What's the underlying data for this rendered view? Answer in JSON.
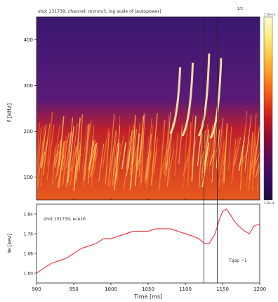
{
  "chart_data": [
    {
      "type": "heatmap",
      "title": "shot 131739, channel: mirnov3, log scale of |autopower|",
      "title_superscript": "1/2",
      "ylabel": "f [kHz]",
      "xlim": [
        900,
        1200
      ],
      "ylim": [
        50,
        450
      ],
      "y_ticks": [
        100,
        200,
        300,
        400
      ],
      "y_tick_labels": [
        "100",
        "200",
        "300",
        "400"
      ],
      "colorbar": {
        "top_label": "1.0e+1",
        "bottom_label": "1.0e-4",
        "colors": [
          "#fffbd6",
          "#ffee7a",
          "#ffc23a",
          "#ff8a1e",
          "#f04a10",
          "#c8141e",
          "#8c0a3a",
          "#5a0a5c",
          "#380a66",
          "#1c0a3c"
        ]
      },
      "background_color": "#4a1a7a",
      "chirp_features": [
        {
          "x": [
            1080,
            1093
          ],
          "y": [
            195,
            340
          ]
        },
        {
          "x": [
            1096,
            1110
          ],
          "y": [
            190,
            350
          ]
        },
        {
          "x": [
            1118,
            1132
          ],
          "y": [
            190,
            370
          ]
        },
        {
          "x": [
            1134,
            1148
          ],
          "y": [
            185,
            360
          ]
        }
      ],
      "vertical_markers": [
        1125,
        1143
      ]
    },
    {
      "type": "line",
      "annotation": "shot 131739, ece16",
      "ylabel": "Te [keV]",
      "xlabel": "Time [ms]",
      "xlim": [
        900,
        1200
      ],
      "ylim": [
        1.56,
        1.88
      ],
      "x_ticks": [
        900,
        950,
        1000,
        1050,
        1100,
        1150,
        1200
      ],
      "x_tick_labels": [
        "900",
        "950",
        "1000",
        "1050",
        "1100",
        "1150",
        "1200"
      ],
      "y_ticks": [
        1.6,
        1.68,
        1.76,
        1.84
      ],
      "y_tick_labels": [
        "1.60",
        "1.68",
        "1.76",
        "1.84"
      ],
      "series": [
        {
          "color": "#e8434a",
          "x": [
            900,
            910,
            920,
            930,
            940,
            950,
            960,
            970,
            980,
            990,
            1000,
            1010,
            1020,
            1030,
            1040,
            1050,
            1060,
            1070,
            1080,
            1090,
            1100,
            1110,
            1118,
            1126,
            1132,
            1140,
            1146,
            1150,
            1155,
            1160,
            1166,
            1172,
            1180,
            1186,
            1192,
            1200
          ],
          "y": [
            1.6,
            1.62,
            1.64,
            1.65,
            1.66,
            1.68,
            1.7,
            1.71,
            1.72,
            1.74,
            1.74,
            1.75,
            1.76,
            1.77,
            1.77,
            1.77,
            1.78,
            1.78,
            1.78,
            1.77,
            1.76,
            1.75,
            1.74,
            1.72,
            1.72,
            1.76,
            1.82,
            1.85,
            1.86,
            1.84,
            1.81,
            1.79,
            1.77,
            1.76,
            1.79,
            1.8
          ]
        }
      ],
      "annotation2": "Tgap ~1"
    }
  ]
}
